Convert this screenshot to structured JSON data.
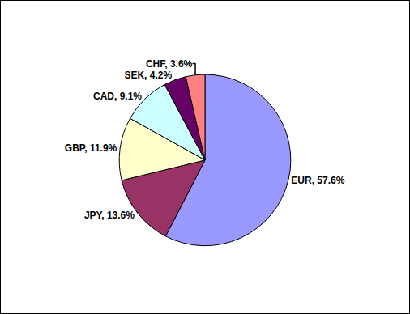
{
  "chart_data": {
    "type": "pie",
    "categories": [
      "EUR",
      "JPY",
      "GBP",
      "CAD",
      "SEK",
      "CHF"
    ],
    "values": [
      57.6,
      13.6,
      11.9,
      9.1,
      4.2,
      3.6
    ],
    "value_labels": [
      "EUR, 57.6%",
      "JPY, 13.6%",
      "GBP, 11.9%",
      "CAD, 9.1%",
      "SEK, 4.2%",
      "CHF, 3.6%"
    ],
    "colors": [
      "#9999ff",
      "#993366",
      "#ffffcc",
      "#ccffff",
      "#660066",
      "#ff8080"
    ],
    "data_labels": true
  }
}
